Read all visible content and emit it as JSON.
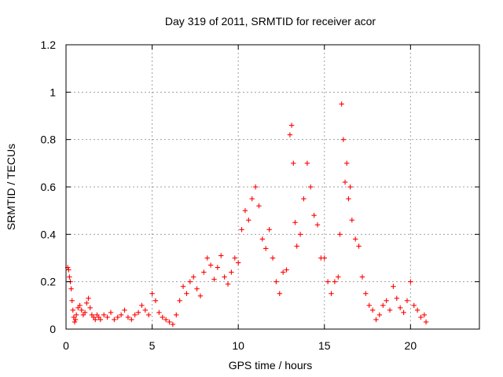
{
  "chart_data": {
    "type": "scatter",
    "title": "Day 319 of 2011, SRMTID for receiver acor",
    "xlabel": "GPS time / hours",
    "ylabel": "SRMTID / TECUs",
    "xlim": [
      0,
      24
    ],
    "ylim": [
      0,
      1.2
    ],
    "xticks": [
      0,
      5,
      10,
      15,
      20
    ],
    "yticks": [
      0,
      0.2,
      0.4,
      0.6,
      0.8,
      1,
      1.2
    ],
    "xtick_labels": [
      "0",
      "5",
      "10",
      "15",
      "20"
    ],
    "ytick_labels": [
      "0",
      "0.2",
      "0.4",
      "0.6",
      "0.8",
      "1",
      "1.2"
    ],
    "grid": true,
    "marker": "+",
    "color": "#ff0000",
    "series": [
      {
        "name": "acor",
        "x": [
          0.1,
          0.15,
          0.2,
          0.25,
          0.3,
          0.35,
          0.4,
          0.45,
          0.5,
          0.55,
          0.6,
          0.7,
          0.8,
          0.9,
          1.0,
          1.1,
          1.2,
          1.3,
          1.4,
          1.5,
          1.6,
          1.7,
          1.8,
          1.9,
          2.0,
          2.2,
          2.4,
          2.6,
          2.8,
          3.0,
          3.2,
          3.4,
          3.6,
          3.8,
          4.0,
          4.2,
          4.4,
          4.6,
          4.8,
          5.0,
          5.2,
          5.4,
          5.6,
          5.8,
          6.0,
          6.2,
          6.4,
          6.6,
          6.8,
          7.0,
          7.2,
          7.4,
          7.6,
          7.8,
          8.0,
          8.2,
          8.4,
          8.6,
          8.8,
          9.0,
          9.2,
          9.4,
          9.6,
          9.8,
          10.0,
          10.2,
          10.4,
          10.6,
          10.8,
          11.0,
          11.2,
          11.4,
          11.6,
          11.8,
          12.0,
          12.2,
          12.4,
          12.6,
          12.8,
          13.0,
          13.1,
          13.2,
          13.3,
          13.4,
          13.6,
          13.8,
          14.0,
          14.2,
          14.4,
          14.6,
          14.8,
          15.0,
          15.2,
          15.4,
          15.6,
          15.8,
          15.9,
          16.0,
          16.1,
          16.2,
          16.3,
          16.4,
          16.5,
          16.6,
          16.8,
          17.0,
          17.2,
          17.4,
          17.6,
          17.8,
          18.0,
          18.2,
          18.4,
          18.6,
          18.8,
          19.0,
          19.2,
          19.4,
          19.6,
          19.8,
          20.0,
          20.2,
          20.4,
          20.6,
          20.8,
          20.9
        ],
        "y": [
          0.26,
          0.25,
          0.22,
          0.2,
          0.17,
          0.12,
          0.08,
          0.05,
          0.03,
          0.04,
          0.06,
          0.09,
          0.1,
          0.08,
          0.06,
          0.07,
          0.11,
          0.13,
          0.09,
          0.06,
          0.05,
          0.04,
          0.06,
          0.05,
          0.04,
          0.06,
          0.05,
          0.07,
          0.04,
          0.05,
          0.06,
          0.08,
          0.05,
          0.04,
          0.06,
          0.07,
          0.1,
          0.08,
          0.06,
          0.15,
          0.12,
          0.07,
          0.05,
          0.04,
          0.03,
          0.02,
          0.06,
          0.12,
          0.18,
          0.15,
          0.2,
          0.22,
          0.17,
          0.14,
          0.24,
          0.3,
          0.27,
          0.21,
          0.26,
          0.31,
          0.22,
          0.19,
          0.24,
          0.3,
          0.28,
          0.42,
          0.5,
          0.46,
          0.55,
          0.6,
          0.52,
          0.38,
          0.34,
          0.42,
          0.3,
          0.2,
          0.15,
          0.24,
          0.25,
          0.82,
          0.86,
          0.7,
          0.45,
          0.35,
          0.4,
          0.55,
          0.7,
          0.6,
          0.48,
          0.44,
          0.3,
          0.3,
          0.2,
          0.15,
          0.2,
          0.22,
          0.4,
          0.95,
          0.8,
          0.62,
          0.7,
          0.55,
          0.6,
          0.46,
          0.38,
          0.35,
          0.22,
          0.15,
          0.1,
          0.08,
          0.04,
          0.06,
          0.1,
          0.12,
          0.08,
          0.18,
          0.13,
          0.09,
          0.07,
          0.12,
          0.2,
          0.1,
          0.08,
          0.05,
          0.06,
          0.03
        ]
      }
    ]
  }
}
